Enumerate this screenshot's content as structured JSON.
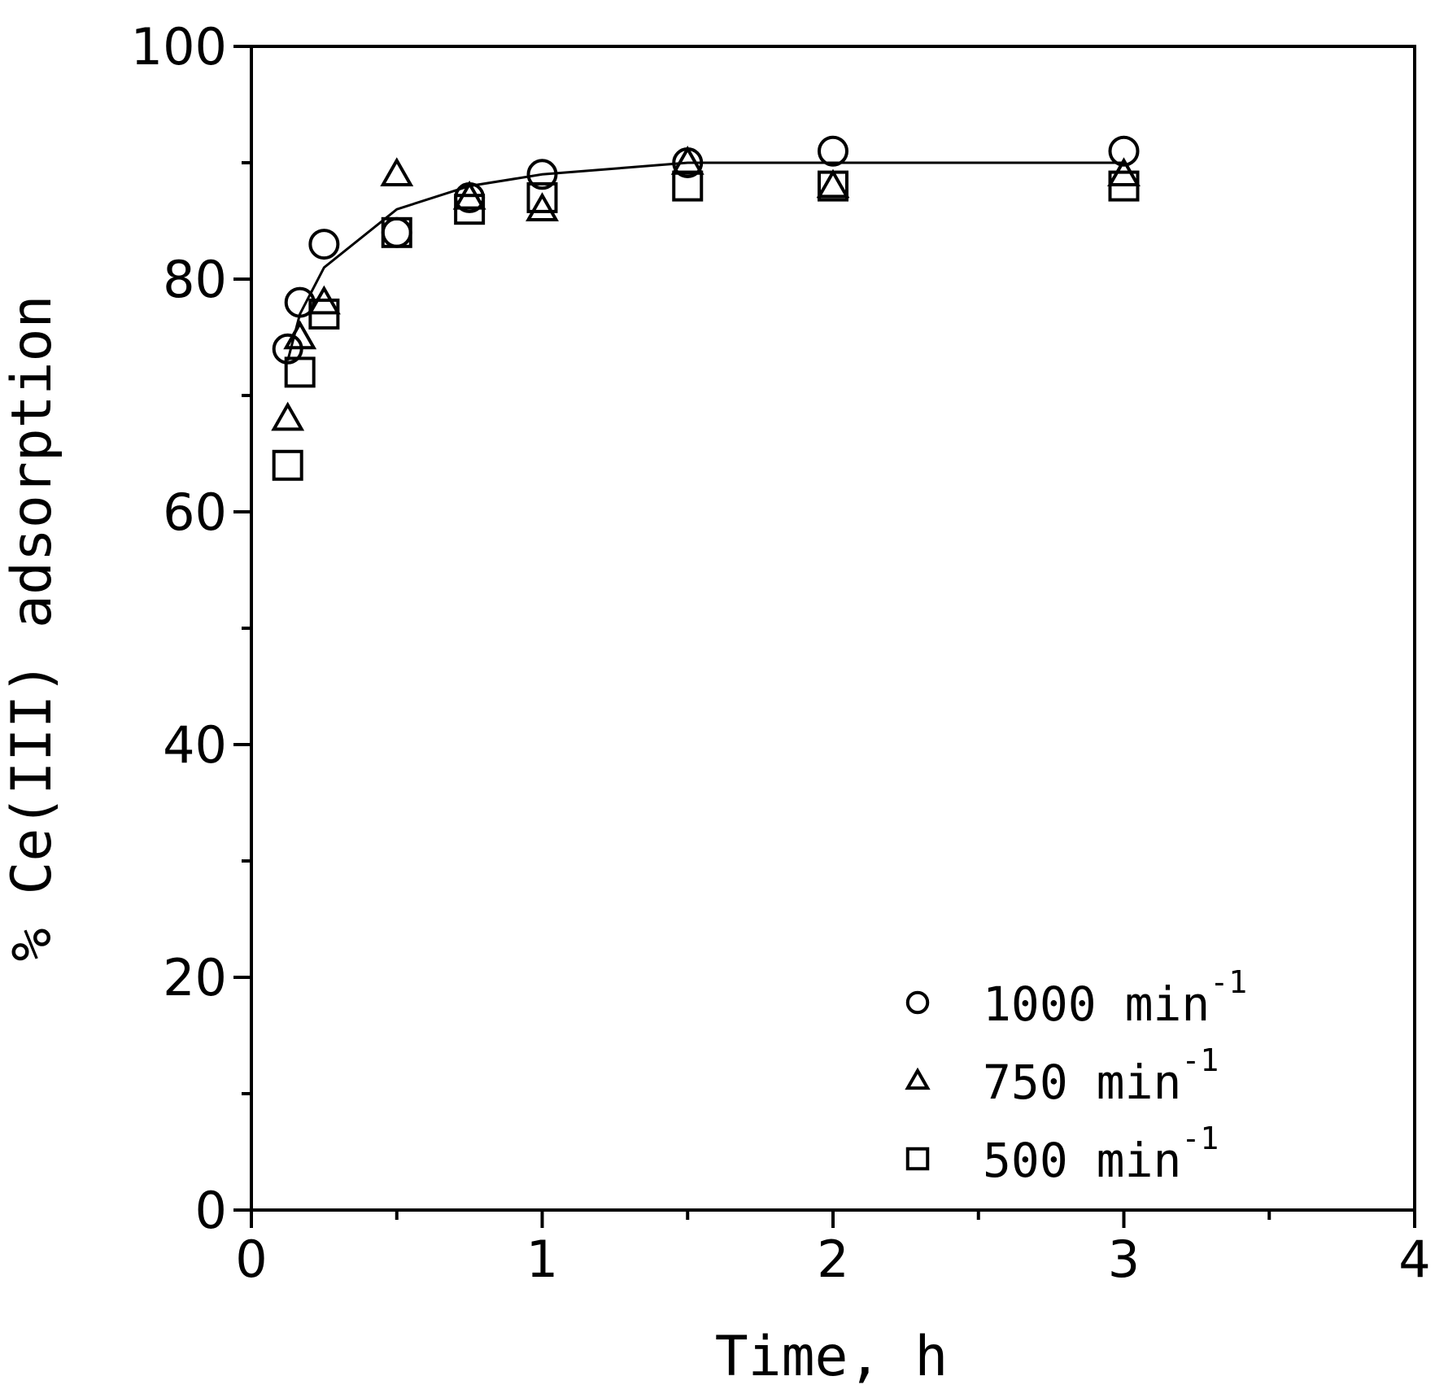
{
  "chart_data": {
    "type": "scatter",
    "xlabel": "Time, h",
    "ylabel": "% Ce(III) adsorption",
    "xlim": [
      0,
      4
    ],
    "ylim": [
      0,
      100
    ],
    "x_ticks": [
      0,
      1,
      2,
      3,
      4
    ],
    "x_minor_ticks": [
      0.5,
      1.5,
      2.5,
      3.5
    ],
    "y_ticks": [
      0,
      20,
      40,
      60,
      80,
      100
    ],
    "y_minor_ticks": [
      10,
      30,
      50,
      70,
      90
    ],
    "grid": false,
    "legend_position": "bottom-right",
    "series": [
      {
        "name": "1000 min",
        "name_superscript": "-1",
        "marker": "circle",
        "points": [
          [
            0.125,
            74
          ],
          [
            0.167,
            78
          ],
          [
            0.25,
            83
          ],
          [
            0.5,
            84
          ],
          [
            0.75,
            87
          ],
          [
            1,
            89
          ],
          [
            1.5,
            90
          ],
          [
            2,
            91
          ],
          [
            3,
            91
          ]
        ]
      },
      {
        "name": "750 min",
        "name_superscript": "-1",
        "marker": "triangle",
        "points": [
          [
            0.125,
            68
          ],
          [
            0.167,
            75
          ],
          [
            0.25,
            78
          ],
          [
            0.5,
            89
          ],
          [
            0.75,
            87
          ],
          [
            1,
            86
          ],
          [
            1.5,
            90
          ],
          [
            2,
            88
          ],
          [
            3,
            89
          ]
        ]
      },
      {
        "name": "500 min",
        "name_superscript": "-1",
        "marker": "square",
        "points": [
          [
            0.125,
            64
          ],
          [
            0.167,
            72
          ],
          [
            0.25,
            77
          ],
          [
            0.5,
            84
          ],
          [
            0.75,
            86
          ],
          [
            1,
            87
          ],
          [
            1.5,
            88
          ],
          [
            2,
            88
          ],
          [
            3,
            88
          ]
        ]
      }
    ],
    "fit_line": {
      "points": [
        [
          0.125,
          73
        ],
        [
          0.167,
          77
        ],
        [
          0.25,
          81
        ],
        [
          0.5,
          86
        ],
        [
          0.75,
          88
        ],
        [
          1,
          89
        ],
        [
          1.5,
          90
        ],
        [
          2,
          90
        ],
        [
          3,
          90
        ]
      ]
    }
  }
}
